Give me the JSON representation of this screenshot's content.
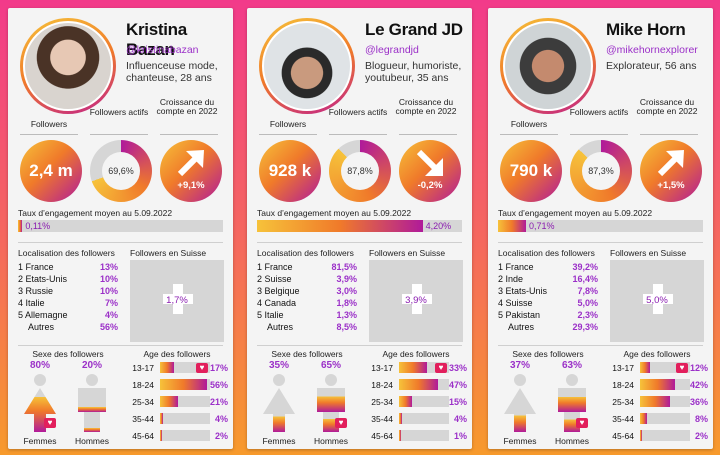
{
  "labels": {
    "followers": "Followers",
    "active_followers": "Followers actifs",
    "growth": "Croissance du compte en 2022",
    "engagement": "Taux d’engagement moyen au 5.09.2022",
    "location": "Localisation des followers",
    "swiss_followers": "Followers en Suisse",
    "sex": "Sexe des followers",
    "age": "Age des followers",
    "women": "Femmes",
    "men": "Hommes"
  },
  "colors": {
    "accent": "#9b30c8",
    "gradient_start": "#f6c23a",
    "gradient_mid": "#f07a2a",
    "gradient_end": "#b01a9a",
    "track": "#d6d6d6"
  },
  "icons": {
    "growth_up": "arrow-up-right-icon",
    "growth_down": "arrow-down-right-icon",
    "heart": "heart-icon",
    "swiss_cross": "swiss-cross-icon"
  },
  "profiles": [
    {
      "name": "Kristina Bazan",
      "handle": "@kristinabazan",
      "bio": "Influenceuse mode, chanteuse, 28 ans",
      "followers": "2,4 m",
      "active_pct": 69.6,
      "active": "69,6%",
      "growth": "+9,1%",
      "growth_dir": "up",
      "engagement": "0,11%",
      "engagement_pct": 0.11,
      "locations": [
        {
          "country": "1 France",
          "pct": "13%"
        },
        {
          "country": "2 Etats-Unis",
          "pct": "10%"
        },
        {
          "country": "3 Russie",
          "pct": "10%"
        },
        {
          "country": "4 Italie",
          "pct": "7%"
        },
        {
          "country": "5 Allemagne",
          "pct": "4%"
        },
        {
          "country": "Autres",
          "pct": "56%"
        }
      ],
      "swiss": "1,7%",
      "women": "80%",
      "women_pct": 80,
      "men": "20%",
      "men_pct": 20,
      "heart_on": "women",
      "ages": [
        {
          "range": "13-17",
          "pct": "17%",
          "value": 17,
          "heart": true
        },
        {
          "range": "18-24",
          "pct": "56%",
          "value": 56,
          "heart": false
        },
        {
          "range": "25-34",
          "pct": "21%",
          "value": 21,
          "heart": false
        },
        {
          "range": "35-44",
          "pct": "4%",
          "value": 4,
          "heart": false
        },
        {
          "range": "45-64",
          "pct": "2%",
          "value": 2,
          "heart": false
        }
      ]
    },
    {
      "name": "Le Grand JD",
      "handle": "@legrandjd",
      "bio": "Blogueur, humoriste, youtubeur, 35 ans",
      "followers": "928 k",
      "active_pct": 87.8,
      "active": "87,8%",
      "growth": "-0,2%",
      "growth_dir": "down",
      "engagement": "4,20%",
      "engagement_pct": 4.2,
      "locations": [
        {
          "country": "1 France",
          "pct": "81,5%"
        },
        {
          "country": "2 Suisse",
          "pct": "3,9%"
        },
        {
          "country": "3 Belgique",
          "pct": "3,0%"
        },
        {
          "country": "4 Canada",
          "pct": "1,8%"
        },
        {
          "country": "5 Italie",
          "pct": "1,3%"
        },
        {
          "country": "Autres",
          "pct": "8,5%"
        }
      ],
      "swiss": "3,9%",
      "women": "35%",
      "women_pct": 35,
      "men": "65%",
      "men_pct": 65,
      "heart_on": "men",
      "ages": [
        {
          "range": "13-17",
          "pct": "33%",
          "value": 33,
          "heart": true
        },
        {
          "range": "18-24",
          "pct": "47%",
          "value": 47,
          "heart": false
        },
        {
          "range": "25-34",
          "pct": "15%",
          "value": 15,
          "heart": false
        },
        {
          "range": "35-44",
          "pct": "4%",
          "value": 4,
          "heart": false
        },
        {
          "range": "45-64",
          "pct": "1%",
          "value": 1,
          "heart": false
        }
      ]
    },
    {
      "name": "Mike Horn",
      "handle": "@mikehornexplorer",
      "bio": "Explorateur, 56 ans",
      "followers": "790 k",
      "active_pct": 87.3,
      "active": "87,3%",
      "growth": "+1,5%",
      "growth_dir": "up",
      "engagement": "0,71%",
      "engagement_pct": 0.71,
      "locations": [
        {
          "country": "1 France",
          "pct": "39,2%"
        },
        {
          "country": "2 Inde",
          "pct": "16,4%"
        },
        {
          "country": "3 Etats-Unis",
          "pct": "7,8%"
        },
        {
          "country": "4 Suisse",
          "pct": "5,0%"
        },
        {
          "country": "5 Pakistan",
          "pct": "2,3%"
        },
        {
          "country": "Autres",
          "pct": "29,3%"
        }
      ],
      "swiss": "5,0%",
      "women": "37%",
      "women_pct": 37,
      "men": "63%",
      "men_pct": 63,
      "heart_on": "men",
      "ages": [
        {
          "range": "13-17",
          "pct": "12%",
          "value": 12,
          "heart": true
        },
        {
          "range": "18-24",
          "pct": "42%",
          "value": 42,
          "heart": false
        },
        {
          "range": "25-34",
          "pct": "36%",
          "value": 36,
          "heart": false
        },
        {
          "range": "35-44",
          "pct": "8%",
          "value": 8,
          "heart": false
        },
        {
          "range": "45-64",
          "pct": "2%",
          "value": 2,
          "heart": false
        }
      ]
    }
  ]
}
